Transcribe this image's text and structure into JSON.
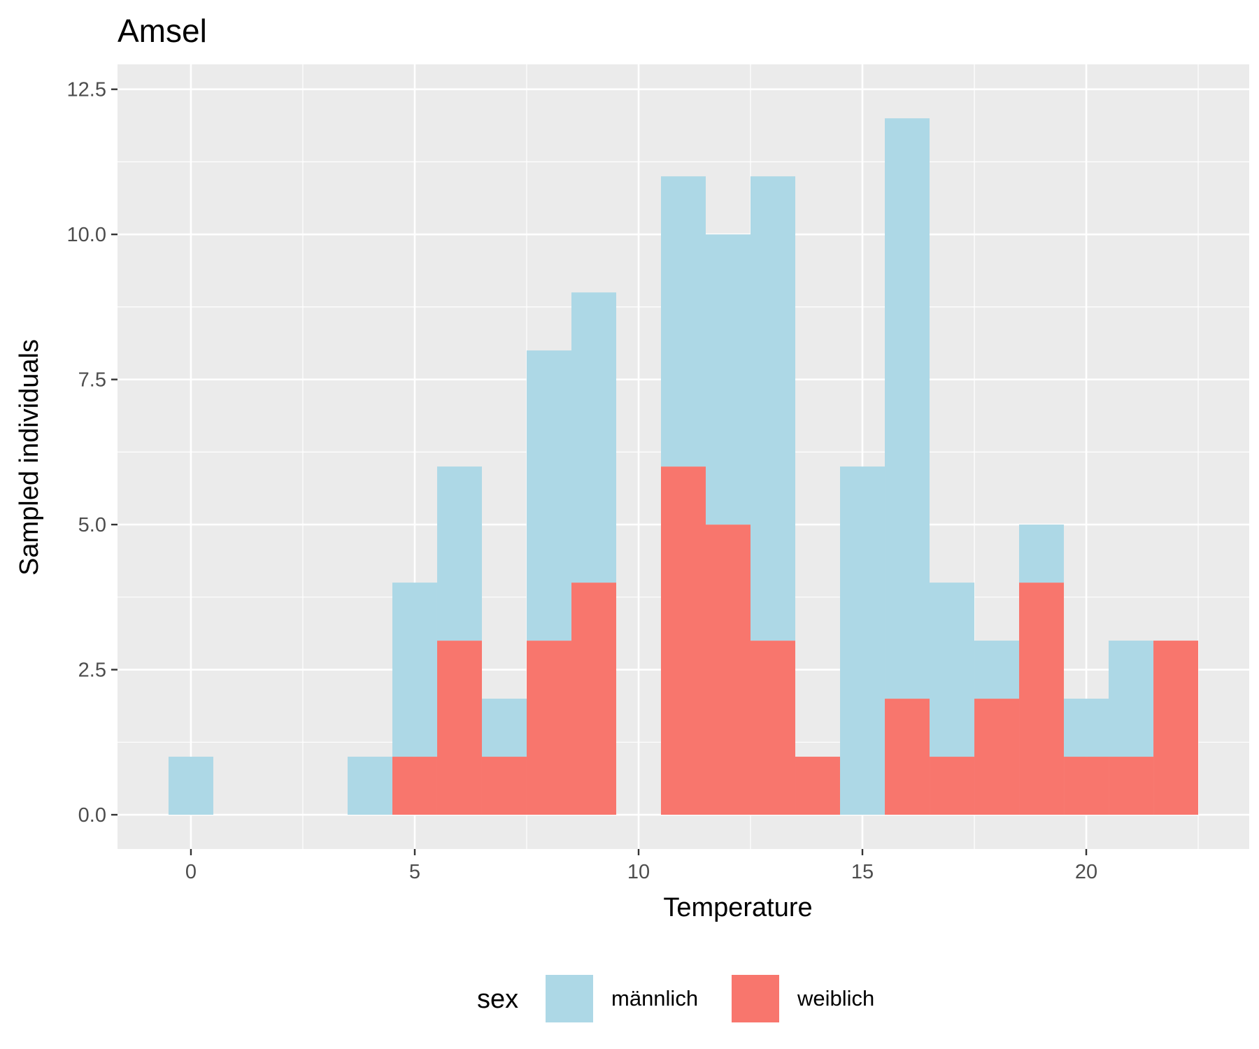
{
  "chart_data": {
    "type": "bar",
    "subtype": "stacked-histogram",
    "title": "Amsel",
    "xlabel": "Temperature",
    "ylabel": "Sampled individuals",
    "xlim": [
      -1.64,
      23.64
    ],
    "ylim": [
      -0.59,
      12.93
    ],
    "x_ticks": [
      0,
      5,
      10,
      15,
      20
    ],
    "x_tick_labels": [
      "0",
      "5",
      "10",
      "15",
      "20"
    ],
    "y_ticks": [
      0,
      2.5,
      5,
      7.5,
      10,
      12.5
    ],
    "y_tick_labels": [
      "0.0",
      "2.5",
      "5.0",
      "7.5",
      "10.0",
      "12.5"
    ],
    "grid": true,
    "bin_width": 1,
    "x": [
      0,
      4,
      5,
      6,
      7,
      8,
      9,
      11,
      12,
      13,
      14,
      15,
      16,
      17,
      18,
      19,
      20,
      21,
      22
    ],
    "series": [
      {
        "name": "weiblich",
        "color": "#f8766d",
        "values": [
          0,
          0,
          1,
          3,
          1,
          3,
          4,
          6,
          5,
          3,
          1,
          0,
          2,
          1,
          2,
          4,
          1,
          1,
          3
        ]
      },
      {
        "name": "männlich",
        "color": "#add8e6",
        "values": [
          1,
          1,
          3,
          3,
          1,
          5,
          5,
          5,
          5,
          8,
          0,
          6,
          10,
          3,
          1,
          1,
          1,
          2,
          0
        ]
      }
    ],
    "legend": {
      "title": "sex",
      "position": "bottom",
      "entries": [
        {
          "label": "männlich",
          "color": "#add8e6"
        },
        {
          "label": "weiblich",
          "color": "#f8766d"
        }
      ]
    },
    "panel_background": "#ebebeb"
  }
}
